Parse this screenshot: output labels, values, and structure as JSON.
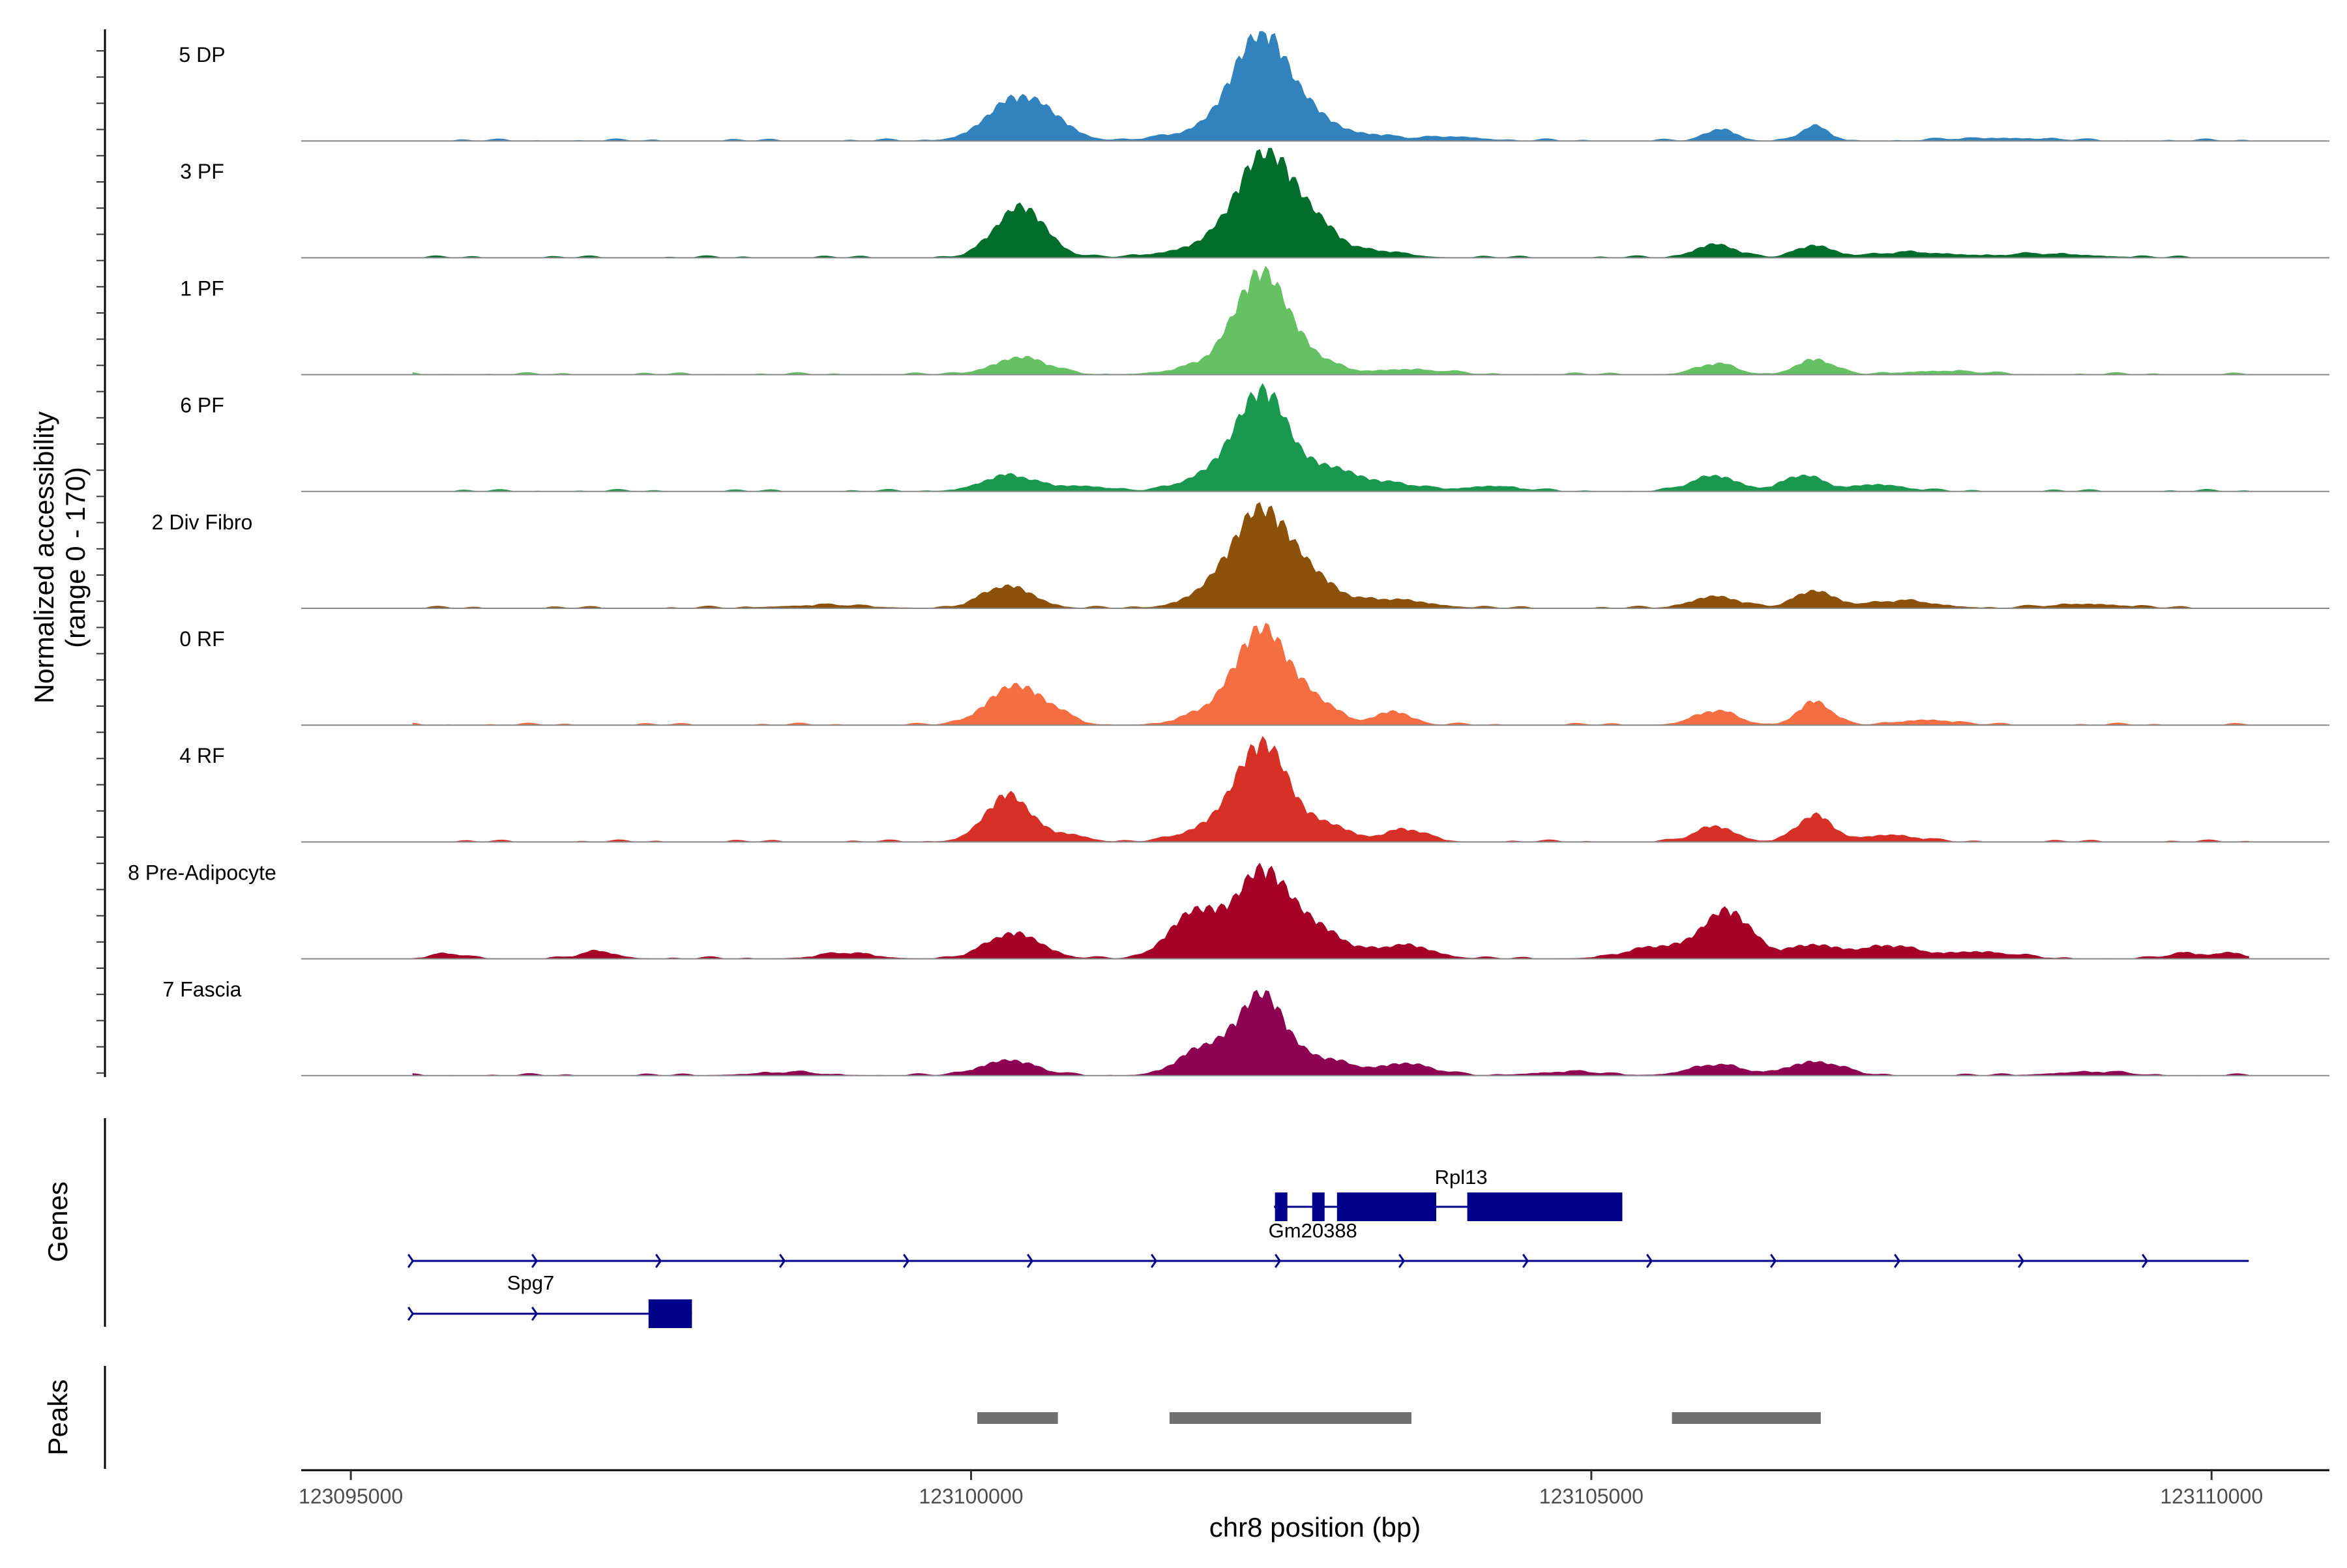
{
  "chart_data": {
    "type": "area",
    "title": "",
    "ylabel": "Normalized accessibility",
    "ylabel_range": "(range 0 - 170)",
    "xlabel": "chr8 position (bp)",
    "region": {
      "chrom": "chr8",
      "start": 123095500,
      "end": 123110300
    },
    "xlim": [
      123094600,
      123110950
    ],
    "ylim": [
      0,
      170
    ],
    "xticks": [
      {
        "value": 123095000,
        "label": "123095000"
      },
      {
        "value": 123100000,
        "label": "123100000"
      },
      {
        "value": 123105000,
        "label": "123105000"
      },
      {
        "value": 123110000,
        "label": "123110000"
      }
    ],
    "series": [
      {
        "name": "5 DP",
        "color": "#3182BD",
        "peaks": [
          [
            123100350,
            115,
            320
          ],
          [
            123100650,
            40,
            260
          ],
          [
            123102350,
            290,
            320
          ],
          [
            123102050,
            35,
            500
          ],
          [
            123102800,
            45,
            240
          ],
          [
            123103200,
            18,
            300
          ],
          [
            123106050,
            35,
            160
          ],
          [
            123106800,
            40,
            160
          ],
          [
            123103900,
            12,
            300
          ],
          [
            123108300,
            8,
            500
          ]
        ]
      },
      {
        "name": "3 PF",
        "color": "#006D2C",
        "peaks": [
          [
            123100400,
            150,
            280
          ],
          [
            123102400,
            290,
            340
          ],
          [
            123102000,
            35,
            500
          ],
          [
            123102850,
            55,
            220
          ],
          [
            123103300,
            18,
            300
          ],
          [
            123106000,
            40,
            220
          ],
          [
            123106800,
            35,
            200
          ],
          [
            123107600,
            14,
            500
          ],
          [
            123108700,
            10,
            500
          ]
        ]
      },
      {
        "name": "1 PF",
        "color": "#66C164",
        "peaks": [
          [
            123100400,
            50,
            300
          ],
          [
            123102350,
            290,
            300
          ],
          [
            123101950,
            25,
            400
          ],
          [
            123102800,
            30,
            250
          ],
          [
            123103500,
            15,
            400
          ],
          [
            123106000,
            30,
            220
          ],
          [
            123106800,
            45,
            200
          ],
          [
            123107800,
            10,
            400
          ]
        ]
      },
      {
        "name": "6 PF",
        "color": "#1A9850",
        "peaks": [
          [
            123100300,
            45,
            300
          ],
          [
            123102350,
            290,
            300
          ],
          [
            123101900,
            40,
            300
          ],
          [
            123102900,
            55,
            260
          ],
          [
            123103300,
            25,
            400
          ],
          [
            123106000,
            45,
            260
          ],
          [
            123106700,
            45,
            220
          ],
          [
            123107300,
            20,
            300
          ],
          [
            123100900,
            15,
            300
          ],
          [
            123104200,
            15,
            300
          ]
        ]
      },
      {
        "name": "2 Div Fibro",
        "color": "#8C510A",
        "peaks": [
          [
            123100300,
            65,
            280
          ],
          [
            123102350,
            285,
            340
          ],
          [
            123101900,
            30,
            300
          ],
          [
            123102800,
            55,
            260
          ],
          [
            123103400,
            25,
            400
          ],
          [
            123106000,
            35,
            260
          ],
          [
            123106800,
            50,
            220
          ],
          [
            123107500,
            20,
            400
          ],
          [
            123098800,
            8,
            500
          ],
          [
            123109000,
            12,
            400
          ]
        ]
      },
      {
        "name": "0 RF",
        "color": "#F46D43",
        "peaks": [
          [
            123100350,
            115,
            300
          ],
          [
            123102350,
            280,
            300
          ],
          [
            123101900,
            30,
            300
          ],
          [
            123102800,
            55,
            240
          ],
          [
            123103400,
            40,
            200
          ],
          [
            123106000,
            40,
            240
          ],
          [
            123106800,
            70,
            180
          ],
          [
            123107700,
            15,
            300
          ],
          [
            123100700,
            20,
            200
          ]
        ]
      },
      {
        "name": "4 RF",
        "color": "#D73027",
        "peaks": [
          [
            123100300,
            135,
            260
          ],
          [
            123102350,
            285,
            300
          ],
          [
            123101900,
            35,
            300
          ],
          [
            123102900,
            45,
            240
          ],
          [
            123103500,
            35,
            240
          ],
          [
            123106000,
            45,
            220
          ],
          [
            123106800,
            75,
            200
          ],
          [
            123107400,
            20,
            300
          ],
          [
            123100800,
            20,
            200
          ]
        ]
      },
      {
        "name": "8 Pre-Adipocyte",
        "color": "#A50026",
        "peaks": [
          [
            123100350,
            75,
            300
          ],
          [
            123101800,
            135,
            280
          ],
          [
            123102350,
            250,
            300
          ],
          [
            123102800,
            80,
            300
          ],
          [
            123103500,
            40,
            300
          ],
          [
            123106100,
            135,
            260
          ],
          [
            123105600,
            35,
            400
          ],
          [
            123106800,
            40,
            300
          ],
          [
            123107400,
            35,
            300
          ],
          [
            123108100,
            20,
            400
          ],
          [
            123095800,
            12,
            200
          ],
          [
            123097000,
            20,
            200
          ],
          [
            123099000,
            15,
            300
          ],
          [
            123109800,
            15,
            200
          ],
          [
            123110150,
            18,
            150
          ]
        ]
      },
      {
        "name": "7 Fascia",
        "color": "#8E0152",
        "peaks": [
          [
            123100300,
            45,
            300
          ],
          [
            123101900,
            80,
            300
          ],
          [
            123102350,
            230,
            260
          ],
          [
            123102850,
            45,
            300
          ],
          [
            123103500,
            35,
            300
          ],
          [
            123106000,
            30,
            300
          ],
          [
            123106800,
            40,
            300
          ],
          [
            123104800,
            10,
            400
          ],
          [
            123098500,
            8,
            400
          ],
          [
            123109000,
            10,
            400
          ]
        ]
      }
    ],
    "genes": {
      "title": "Genes",
      "stroke": "#00008B",
      "items": [
        {
          "name": "Rpl13",
          "start": 123102450,
          "end": 123105250,
          "strand": "-",
          "exons": [
            [
              123102450,
              123102550
            ],
            [
              123102750,
              123102850
            ],
            [
              123102950,
              123103750
            ],
            [
              123104000,
              123105250
            ]
          ]
        },
        {
          "name": "Gm20388",
          "start": 123095500,
          "end": 123110300,
          "strand": "+",
          "exons": []
        },
        {
          "name": "Spg7",
          "start": 123095500,
          "end": 123097750,
          "strand": "+",
          "exons": [
            [
              123097400,
              123097750
            ]
          ]
        }
      ]
    },
    "peaks_track": {
      "title": "Peaks",
      "color": "#707070",
      "ranges": [
        [
          123100050,
          123100700
        ],
        [
          123101600,
          123103550
        ],
        [
          123105650,
          123106850
        ]
      ]
    }
  }
}
